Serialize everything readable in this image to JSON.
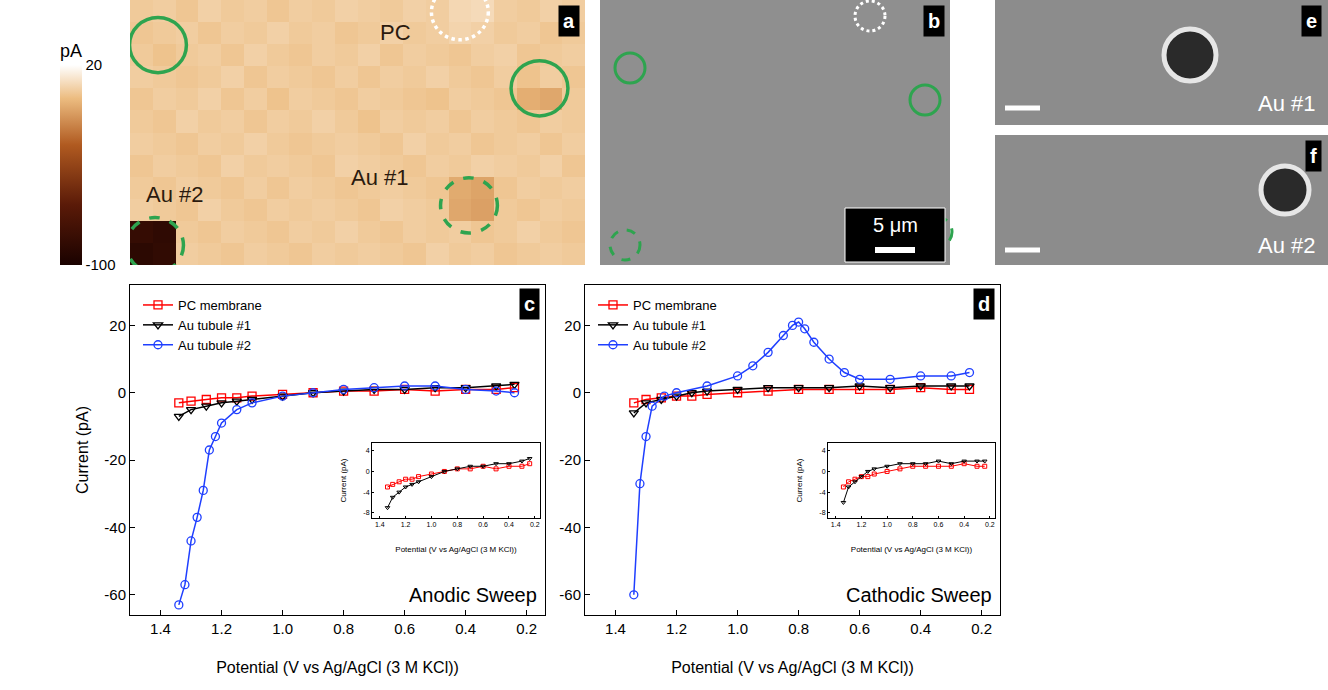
{
  "chart_data": [
    {
      "type": "heatmap",
      "label": "a",
      "tick_labels": false,
      "zlim": [
        -100,
        20
      ],
      "zticks": [
        -100,
        20
      ],
      "colorbar_title": "pA",
      "cells": [
        [
          4,
          5,
          3,
          6,
          4,
          5,
          3,
          5,
          4,
          6,
          5,
          4,
          6,
          5,
          8,
          9,
          5,
          4,
          6,
          5
        ],
        [
          3,
          4,
          5,
          3,
          5,
          4,
          6,
          4,
          5,
          3,
          4,
          6,
          4,
          5,
          7,
          6,
          4,
          5,
          3,
          4
        ],
        [
          4,
          2,
          4,
          5,
          3,
          6,
          4,
          3,
          5,
          4,
          6,
          3,
          5,
          4,
          3,
          5,
          6,
          3,
          4,
          5
        ],
        [
          5,
          4,
          3,
          4,
          6,
          3,
          5,
          4,
          3,
          5,
          3,
          5,
          4,
          6,
          4,
          3,
          5,
          2,
          5,
          3
        ],
        [
          3,
          5,
          4,
          6,
          3,
          5,
          2,
          5,
          4,
          3,
          5,
          4,
          3,
          2,
          5,
          4,
          3,
          -4,
          -6,
          4
        ],
        [
          4,
          3,
          6,
          4,
          5,
          3,
          5,
          4,
          6,
          4,
          2,
          5,
          4,
          5,
          3,
          5,
          4,
          3,
          5,
          4
        ],
        [
          5,
          4,
          3,
          5,
          4,
          6,
          4,
          3,
          4,
          5,
          4,
          3,
          6,
          4,
          5,
          3,
          4,
          5,
          3,
          5
        ],
        [
          3,
          5,
          4,
          3,
          6,
          4,
          5,
          4,
          3,
          6,
          5,
          4,
          3,
          5,
          4,
          6,
          5,
          4,
          6,
          3
        ],
        [
          4,
          3,
          5,
          4,
          3,
          5,
          3,
          5,
          4,
          3,
          4,
          5,
          4,
          3,
          -5,
          -7,
          3,
          5,
          4,
          5
        ],
        [
          5,
          4,
          3,
          6,
          4,
          3,
          5,
          4,
          5,
          4,
          3,
          6,
          5,
          4,
          -6,
          -8,
          4,
          3,
          5,
          4
        ],
        [
          -85,
          -88,
          4,
          3,
          5,
          4,
          3,
          5,
          4,
          6,
          4,
          3,
          5,
          4,
          5,
          3,
          4,
          6,
          4,
          3
        ],
        [
          -90,
          -87,
          5,
          4,
          3,
          5,
          4,
          3,
          5,
          4,
          5,
          4,
          3,
          6,
          4,
          5,
          3,
          4,
          5,
          4
        ]
      ],
      "circles": [
        {
          "x": 0.73,
          "y": 1.54,
          "color": "#2ea44f",
          "line_style": "solid"
        },
        {
          "x": 17.5,
          "y": 3.5,
          "color": "#2ea44f",
          "line_style": "solid"
        },
        {
          "x": 14.4,
          "y": 8.8,
          "color": "#2ea44f",
          "line_style": "dash"
        },
        {
          "x": 0.6,
          "y": 10.6,
          "color": "#2ea44f",
          "line_style": "dash"
        },
        {
          "x": 14.0,
          "y": 0.05,
          "color": "#ffffff",
          "line_style": "dot"
        }
      ],
      "annotations": [
        {
          "text": "PC",
          "x": 11.15,
          "y": 0.95
        },
        {
          "text": "Au #1",
          "x": 10.5,
          "y": 7.56
        },
        {
          "text": "Au #2",
          "x": 1.48,
          "y": 8.3
        }
      ]
    },
    {
      "type": "image",
      "label": "b",
      "scale_bar": "5 μm"
    },
    {
      "type": "line",
      "label": "c",
      "x_label": "Potential (V vs Ag/AgCl (3 M KCl))",
      "y_label": "Current (pA)",
      "xlim": [
        1.5,
        0.14
      ],
      "xticks": [
        1.4,
        1.2,
        {
          "value": 1,
          "label": "1.0"
        },
        0.8,
        0.6,
        0.4,
        0.2
      ],
      "ylim": [
        -66,
        32
      ],
      "yticks": [
        -60,
        -40,
        -20,
        0,
        20
      ],
      "legend": "upper left",
      "annotations": [
        {
          "text": "Anodic Sweep"
        }
      ],
      "series": [
        {
          "name": "PC membrane",
          "color": "#ff0000",
          "marker": "square-open",
          "line_style": "solid",
          "x": [
            1.34,
            1.3,
            1.25,
            1.2,
            1.15,
            1.1,
            1.0,
            0.9,
            0.8,
            0.7,
            0.6,
            0.5,
            0.4,
            0.3,
            0.24
          ],
          "values": [
            -3,
            -2.5,
            -2,
            -1.5,
            -1.5,
            -1,
            -0.5,
            0,
            0.5,
            0.5,
            1,
            0.5,
            1,
            1,
            1.5
          ]
        },
        {
          "name": "Au tubule #1",
          "color": "#000000",
          "marker": "triangle-down-open",
          "line_style": "solid",
          "x": [
            1.34,
            1.3,
            1.25,
            1.2,
            1.15,
            1.1,
            1.0,
            0.9,
            0.8,
            0.7,
            0.6,
            0.5,
            0.4,
            0.3,
            0.24
          ],
          "values": [
            -7,
            -5,
            -4,
            -3,
            -2.5,
            -2,
            -1,
            0,
            0.5,
            1,
            1,
            1.5,
            1.5,
            2,
            2.5
          ]
        },
        {
          "name": "Au tubule #2",
          "color": "#1f3fff",
          "marker": "circle-open",
          "line_style": "solid",
          "x": [
            1.34,
            1.32,
            1.3,
            1.28,
            1.26,
            1.24,
            1.22,
            1.2,
            1.15,
            1.1,
            1.0,
            0.9,
            0.8,
            0.7,
            0.6,
            0.5,
            0.4,
            0.3,
            0.24
          ],
          "values": [
            -63,
            -57,
            -44,
            -37,
            -29,
            -17,
            -13,
            -9,
            -5,
            -3,
            -1,
            0,
            1,
            1.5,
            2,
            2,
            1,
            0.5,
            0
          ]
        }
      ],
      "inset": {
        "x_label": "Potential (V vs Ag/AgCl (3 M KCl))",
        "y_label": "Current (pA)",
        "xlim": [
          1.46,
          0.16
        ],
        "xticks": [
          1.4,
          1.2,
          {
            "value": 1,
            "label": "1.0"
          },
          0.8,
          0.6,
          0.4,
          0.2
        ],
        "ylim": [
          -9,
          5.5
        ],
        "yticks": [
          -8,
          -4,
          0,
          4
        ],
        "series": [
          "PC membrane",
          "Au tubule #1"
        ]
      }
    },
    {
      "type": "line",
      "label": "d",
      "x_label": "Potential (V vs Ag/AgCl (3 M KCl))",
      "xlim": [
        1.5,
        0.14
      ],
      "xticks": [
        1.4,
        1.2,
        {
          "value": 1,
          "label": "1.0"
        },
        0.8,
        0.6,
        0.4,
        0.2
      ],
      "ylim": [
        -66,
        32
      ],
      "yticks": [
        -60,
        -40,
        -20,
        0,
        20
      ],
      "legend": "upper left",
      "annotations": [
        {
          "text": "Cathodic Sweep"
        }
      ],
      "series": [
        {
          "name": "PC membrane",
          "color": "#ff0000",
          "marker": "square-open",
          "line_style": "solid",
          "x": [
            1.34,
            1.3,
            1.25,
            1.2,
            1.15,
            1.1,
            1.0,
            0.9,
            0.8,
            0.7,
            0.6,
            0.5,
            0.4,
            0.3,
            0.24
          ],
          "values": [
            -3,
            -2,
            -1.5,
            -1,
            -1,
            -0.5,
            0,
            0.5,
            1,
            1,
            1,
            1,
            1.5,
            1,
            1
          ]
        },
        {
          "name": "Au tubule #1",
          "color": "#000000",
          "marker": "triangle-down-open",
          "line_style": "solid",
          "x": [
            1.34,
            1.3,
            1.25,
            1.2,
            1.15,
            1.1,
            1.0,
            0.9,
            0.8,
            0.7,
            0.6,
            0.5,
            0.4,
            0.3,
            0.24
          ],
          "values": [
            -6,
            -3,
            -2,
            -1,
            0,
            0.5,
            1,
            1.5,
            1.5,
            1.5,
            2,
            1.5,
            2,
            2,
            2
          ]
        },
        {
          "name": "Au tubule #2",
          "color": "#1f3fff",
          "marker": "circle-open",
          "line_style": "solid",
          "x": [
            1.34,
            1.32,
            1.3,
            1.28,
            1.24,
            1.2,
            1.1,
            1.0,
            0.95,
            0.9,
            0.85,
            0.82,
            0.8,
            0.78,
            0.75,
            0.7,
            0.65,
            0.6,
            0.5,
            0.4,
            0.3,
            0.24
          ],
          "values": [
            -60,
            -27,
            -13,
            -4,
            -1,
            0,
            2,
            5,
            8,
            12,
            17,
            20,
            21,
            19,
            15,
            10,
            6,
            4,
            4,
            5,
            5,
            6
          ]
        }
      ],
      "inset": {
        "x_label": "Potential (V vs Ag/AgCl (3 M KCl))",
        "y_label": "Current (pA)",
        "xlim": [
          1.46,
          0.16
        ],
        "xticks": [
          1.4,
          1.2,
          {
            "value": 1,
            "label": "1.0"
          },
          0.8,
          0.6,
          0.4,
          0.2
        ],
        "ylim": [
          -9,
          5.5
        ],
        "yticks": [
          -8,
          -4,
          0,
          4
        ],
        "series": [
          "PC membrane",
          "Au tubule #1"
        ]
      }
    },
    {
      "type": "image",
      "label": "e",
      "annotations": [
        {
          "text": "Au #1"
        }
      ]
    },
    {
      "type": "image",
      "label": "f",
      "annotations": [
        {
          "text": "Au #2"
        }
      ]
    }
  ]
}
